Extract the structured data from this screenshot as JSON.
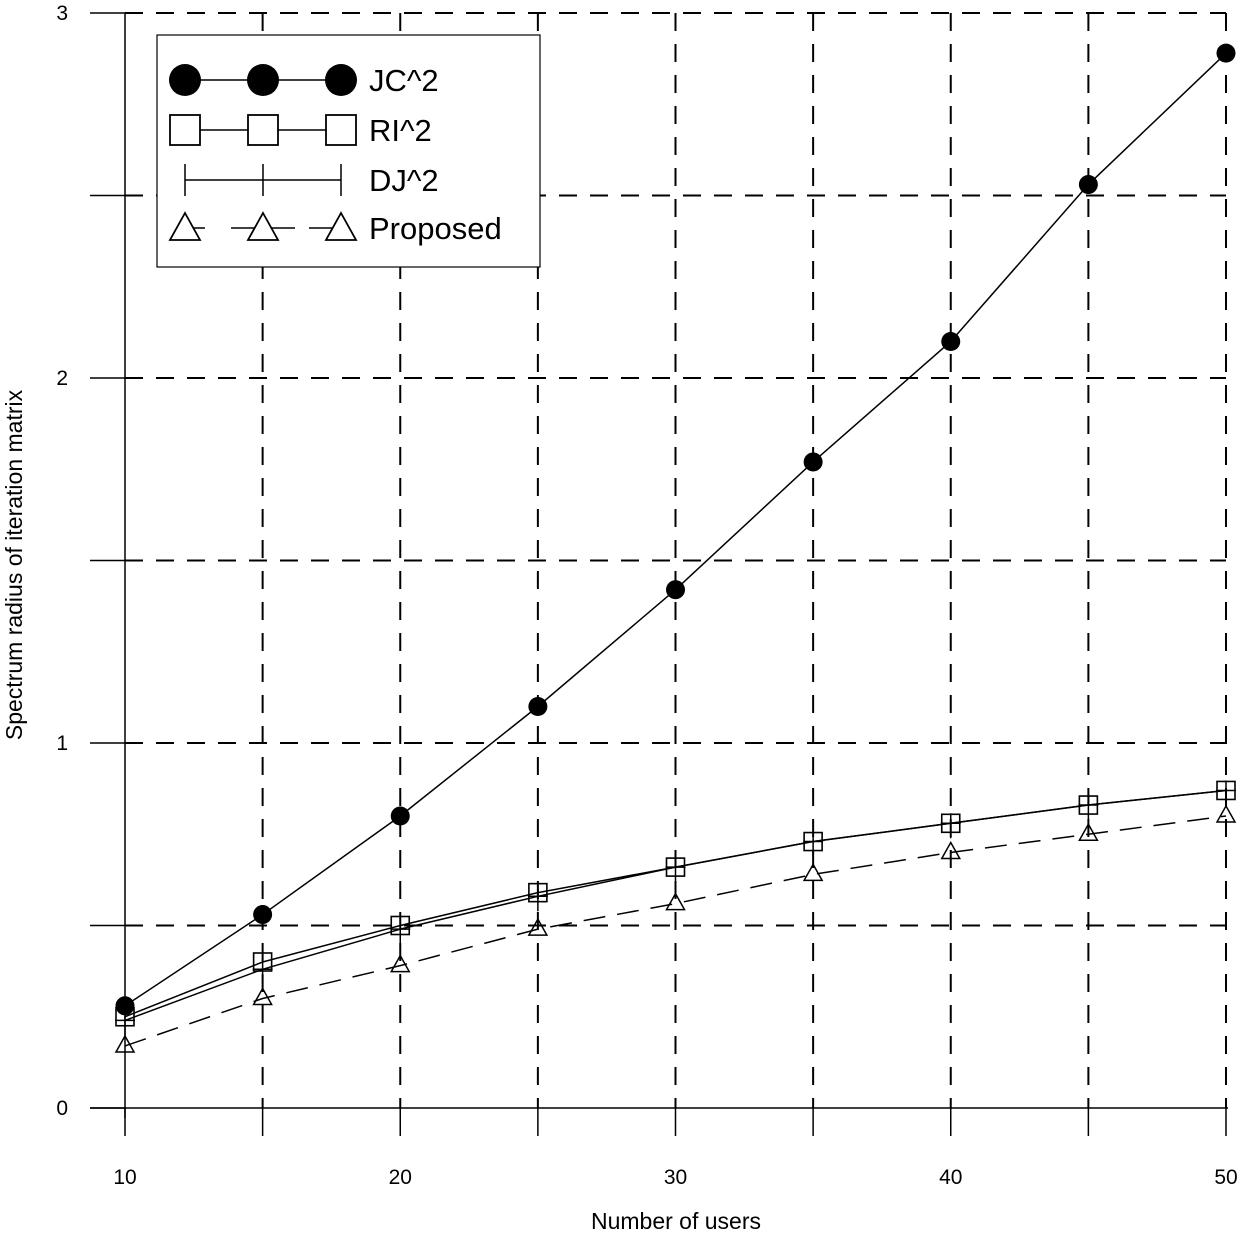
{
  "chart_data": {
    "type": "line",
    "title": "",
    "xlabel": "Number of users",
    "ylabel": "Spectrum radius of iteration matrix",
    "x": [
      10,
      15,
      20,
      25,
      30,
      35,
      40,
      45,
      50
    ],
    "xlim": [
      10,
      50
    ],
    "ylim": [
      0,
      3
    ],
    "xticks": [
      10,
      20,
      30,
      40,
      50
    ],
    "yticks": [
      0,
      1,
      2,
      3
    ],
    "grid": true,
    "legend_position": "top-left",
    "series": [
      {
        "name": "JC^2",
        "marker": "filled-circle",
        "line": "solid",
        "values": [
          0.28,
          0.53,
          0.8,
          1.1,
          1.42,
          1.77,
          2.1,
          2.53,
          2.89
        ]
      },
      {
        "name": "RI^2",
        "marker": "open-square",
        "line": "solid",
        "values": [
          0.25,
          0.4,
          0.5,
          0.59,
          0.66,
          0.73,
          0.78,
          0.83,
          0.87
        ]
      },
      {
        "name": "DJ^2",
        "marker": "plus",
        "line": "solid",
        "values": [
          0.24,
          0.38,
          0.49,
          0.58,
          0.66,
          0.73,
          0.78,
          0.83,
          0.87
        ]
      },
      {
        "name": "Proposed",
        "marker": "open-triangle",
        "line": "dashed",
        "values": [
          0.17,
          0.3,
          0.39,
          0.49,
          0.56,
          0.64,
          0.7,
          0.75,
          0.8
        ]
      }
    ]
  }
}
